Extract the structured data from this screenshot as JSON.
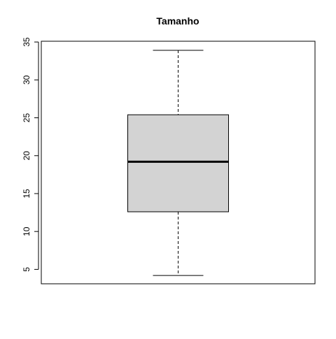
{
  "chart_data": {
    "type": "boxplot",
    "title": "Tamanho",
    "xlabel": "",
    "ylabel": "",
    "ylim": [
      3.1,
      35.1
    ],
    "yticks": [
      5,
      10,
      15,
      20,
      25,
      30,
      35
    ],
    "boxes": [
      {
        "whisker_low": 4.2,
        "q1": 12.6,
        "median": 19.2,
        "q3": 25.4,
        "whisker_high": 33.9
      }
    ],
    "grid": false,
    "colors": {
      "box_fill": "#d3d3d3",
      "stroke": "#000000",
      "frame": "#000000",
      "background": "#ffffff"
    }
  }
}
